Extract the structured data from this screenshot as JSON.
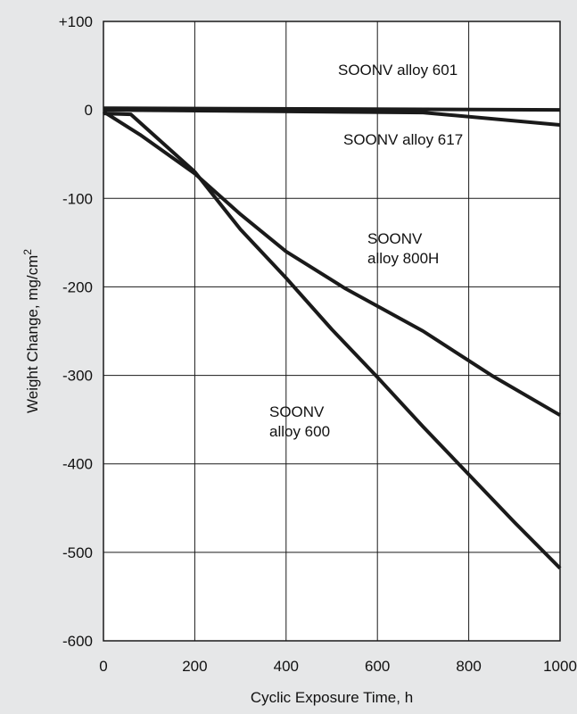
{
  "chart_data": {
    "type": "line",
    "xlabel": "Cyclic Exposure Time, h",
    "ylabel": "Weight Change, mg/cm",
    "ylabel_sup": "2",
    "xlim": [
      0,
      1000
    ],
    "ylim": [
      -600,
      100
    ],
    "x_ticks": [
      0,
      200,
      400,
      600,
      800,
      1000
    ],
    "x_tick_labels": [
      "0",
      "200",
      "400",
      "600",
      "800",
      "1000"
    ],
    "y_ticks": [
      100,
      0,
      -100,
      -200,
      -300,
      -400,
      -500,
      -600
    ],
    "y_tick_labels": [
      "+100",
      "0",
      "-100",
      "-200",
      "-300",
      "-400",
      "-500",
      "-600"
    ],
    "grid": true,
    "series": [
      {
        "name": "SOONV alloy 601",
        "x": [
          0,
          1000
        ],
        "y": [
          2,
          0
        ]
      },
      {
        "name": "SOONV alloy 617",
        "x": [
          0,
          700,
          1000
        ],
        "y": [
          0,
          -3,
          -17
        ]
      },
      {
        "name": "SOONV alloy 800H",
        "x": [
          0,
          80,
          200,
          300,
          400,
          530,
          700,
          850,
          1000
        ],
        "y": [
          -2,
          -28,
          -72,
          -118,
          -160,
          -202,
          -250,
          -300,
          -345
        ]
      },
      {
        "name": "SOONV alloy 600",
        "x": [
          0,
          60,
          200,
          300,
          400,
          500,
          600,
          700,
          800,
          900,
          1000
        ],
        "y": [
          -4,
          -5,
          -70,
          -135,
          -190,
          -248,
          -302,
          -358,
          -412,
          -466,
          -518
        ]
      }
    ],
    "annotations": [
      {
        "lines": [
          "SOONV alloy 601"
        ],
        "series": "SOONV alloy 601"
      },
      {
        "lines": [
          "SOONV alloy 617"
        ],
        "series": "SOONV alloy 617"
      },
      {
        "lines": [
          "SOONV",
          "alloy 800H"
        ],
        "series": "SOONV alloy 800H"
      },
      {
        "lines": [
          "SOONV",
          "alloy 600"
        ],
        "series": "SOONV alloy 600"
      }
    ]
  }
}
